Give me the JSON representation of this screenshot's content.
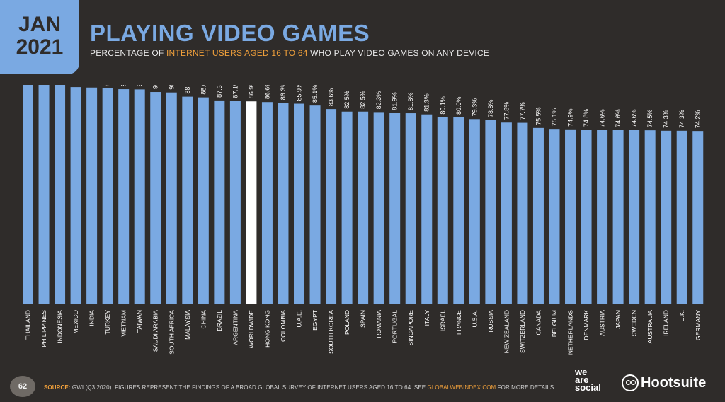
{
  "header": {
    "month": "JAN",
    "year": "2021",
    "title": "PLAYING VIDEO GAMES",
    "subtitle_pre": "PERCENTAGE OF ",
    "subtitle_highlight": "INTERNET USERS AGED 16 TO 64",
    "subtitle_post": " WHO PLAY VIDEO GAMES ON ANY DEVICE"
  },
  "colors": {
    "bar": "#7aa9e2",
    "highlight_bar": "#ffffff",
    "accent": "#f0a03b",
    "background": "#2f2c2a"
  },
  "chart_data": {
    "type": "bar",
    "title": "PLAYING VIDEO GAMES",
    "xlabel": "",
    "ylabel": "",
    "ylim": [
      0,
      100
    ],
    "grid": false,
    "highlight_category": "WORLDWIDE",
    "categories": [
      "THAILAND",
      "PHILIPPINES",
      "INDONESIA",
      "MEXICO",
      "INDIA",
      "TURKEY",
      "VIETNAM",
      "TAIWAN",
      "SAUDI ARABIA",
      "SOUTH AFRICA",
      "MALAYSIA",
      "CHINA",
      "BRAZIL",
      "ARGENTINA",
      "WORLDWIDE",
      "HONG KONG",
      "COLOMBIA",
      "U.A.E.",
      "EGYPT",
      "SOUTH KOREA",
      "POLAND",
      "SPAIN",
      "ROMANIA",
      "PORTUGAL",
      "SINGAPORE",
      "ITALY",
      "ISRAEL",
      "FRANCE",
      "U.S.A.",
      "RUSSIA",
      "NEW ZEALAND",
      "SWITZERLAND",
      "CANADA",
      "BELGIUM",
      "NETHERLANDS",
      "DENMARK",
      "AUSTRIA",
      "JAPAN",
      "SWEDEN",
      "AUSTRALIA",
      "IRELAND",
      "U.K.",
      "GERMANY"
    ],
    "values": [
      96.6,
      95.8,
      94.5,
      93.0,
      92.8,
      92.5,
      92.1,
      92.0,
      90.9,
      90.7,
      88.9,
      88.6,
      87.3,
      87.1,
      86.9,
      86.6,
      86.3,
      85.9,
      85.1,
      83.6,
      82.5,
      82.5,
      82.3,
      81.9,
      81.8,
      81.3,
      80.1,
      80.0,
      79.3,
      78.8,
      77.8,
      77.7,
      75.5,
      75.1,
      74.9,
      74.8,
      74.6,
      74.6,
      74.6,
      74.5,
      74.3,
      74.3,
      74.2
    ],
    "value_labels": [
      "96.6%",
      "95.8%",
      "94.5%",
      "93.0%",
      "92.8%",
      "92.5%",
      "92.1%",
      "92.0%",
      "90.9%",
      "90.7%",
      "88.9%",
      "88.6%",
      "87.3%",
      "87.1%",
      "86.9%",
      "86.6%",
      "86.3%",
      "85.9%",
      "85.1%",
      "83.6%",
      "82.5%",
      "82.5%",
      "82.3%",
      "81.9%",
      "81.8%",
      "81.3%",
      "80.1%",
      "80.0%",
      "79.3%",
      "78.8%",
      "77.8%",
      "77.7%",
      "75.5%",
      "75.1%",
      "74.9%",
      "74.8%",
      "74.6%",
      "74.6%",
      "74.6%",
      "74.5%",
      "74.3%",
      "74.3%",
      "74.2%"
    ]
  },
  "footer": {
    "page_number": "62",
    "source_label": "SOURCE:",
    "source_text": " GWI (Q3 2020). FIGURES REPRESENT THE FINDINGS OF A BROAD GLOBAL SURVEY OF INTERNET USERS AGED 16 TO 64. SEE ",
    "source_link": "GLOBALWEBINDEX.COM",
    "source_end": " FOR MORE DETAILS.",
    "logo_we_are_social": [
      "we",
      "are",
      "social"
    ],
    "logo_hootsuite": "Hootsuite"
  }
}
